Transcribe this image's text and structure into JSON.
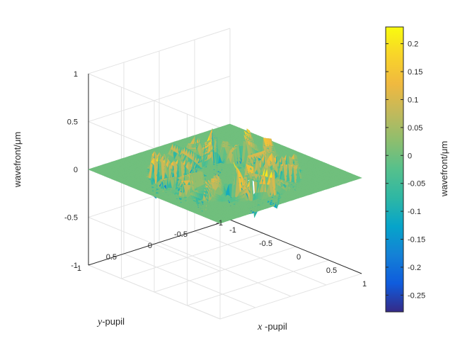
{
  "chart_data": {
    "type": "surface",
    "title": "",
    "xlabel_var": "x",
    "xlabel_rest": " -pupil",
    "ylabel_var": "y",
    "ylabel_rest": "-pupil",
    "zlabel": "wavefront/μm",
    "xlim": [
      -1,
      1
    ],
    "ylim": [
      -1,
      1
    ],
    "zlim": [
      -1,
      1
    ],
    "x_ticks": [
      -1,
      -0.5,
      0,
      0.5,
      1
    ],
    "y_ticks": [
      -1,
      -0.5,
      0,
      0.5,
      1
    ],
    "z_ticks": [
      -1,
      -0.5,
      0,
      0.5,
      1
    ],
    "x_tick_labels": [
      "-1",
      "-0.5",
      "0",
      "0.5",
      "1"
    ],
    "y_tick_labels": [
      "-1",
      "-0.5",
      "0",
      "0.5",
      "1"
    ],
    "z_tick_labels": [
      "-1",
      "-0.5",
      "0",
      "0.5",
      "1"
    ],
    "grid": true,
    "colormap": "parula",
    "colorbar": {
      "label": "wavefront/μm",
      "range": [
        -0.28,
        0.23
      ],
      "ticks": [
        0.2,
        0.15,
        0.1,
        0.05,
        0,
        -0.05,
        -0.1,
        -0.15,
        -0.2,
        -0.25
      ],
      "tick_labels": [
        "0.2",
        "0.15",
        "0.1",
        "0.05",
        "0",
        "-0.05",
        "-0.1",
        "-0.15",
        "-0.2",
        "-0.25"
      ],
      "placement": "right"
    },
    "surface": {
      "description_zones": [
        {
          "r_min": 0.0,
          "r_max": 0.32,
          "z": 0.0
        },
        {
          "r_min": 0.32,
          "r_max": 0.58,
          "z_min": -0.28,
          "z_max": 0.23
        },
        {
          "r_min": 0.58,
          "r_max": 0.78,
          "z_min": -0.28,
          "z_max": 0.23
        },
        {
          "r_min": 0.78,
          "r_max": 1.0,
          "z": 0.0
        }
      ]
    }
  }
}
